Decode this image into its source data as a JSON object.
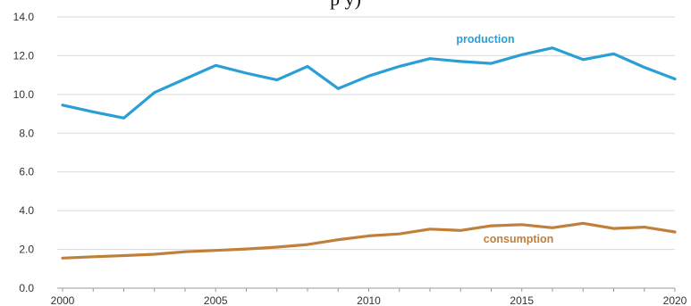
{
  "title_fragment": "p        y)",
  "colors": {
    "production": "#2a9fd6",
    "consumption": "#c0803c",
    "grid": "#d9d9d9",
    "axis": "#999999"
  },
  "chart_data": {
    "type": "line",
    "title": "",
    "xlabel": "",
    "ylabel": "",
    "x": [
      2000,
      2001,
      2002,
      2003,
      2004,
      2005,
      2006,
      2007,
      2008,
      2009,
      2010,
      2011,
      2012,
      2013,
      2014,
      2015,
      2016,
      2017,
      2018,
      2019,
      2020
    ],
    "xlim": [
      2000,
      2020
    ],
    "ylim": [
      0,
      14
    ],
    "y_ticks": [
      "0.0",
      "2.0",
      "4.0",
      "6.0",
      "8.0",
      "10.0",
      "12.0",
      "14.0"
    ],
    "x_ticks": [
      "2000",
      "2005",
      "2010",
      "2015",
      "2020"
    ],
    "grid": "horizontal",
    "legend": "none (series labeled inline)",
    "series": [
      {
        "name": "production",
        "values": [
          9.45,
          9.1,
          8.78,
          10.1,
          10.8,
          11.5,
          11.1,
          10.75,
          11.45,
          10.3,
          10.95,
          11.45,
          11.85,
          11.7,
          11.6,
          12.05,
          12.4,
          11.8,
          12.1,
          11.4,
          10.8
        ]
      },
      {
        "name": "consumption",
        "values": [
          1.55,
          1.62,
          1.68,
          1.75,
          1.88,
          1.95,
          2.02,
          2.12,
          2.25,
          2.5,
          2.7,
          2.8,
          3.05,
          2.98,
          3.22,
          3.28,
          3.12,
          3.35,
          3.08,
          3.15,
          2.9
        ]
      }
    ]
  }
}
